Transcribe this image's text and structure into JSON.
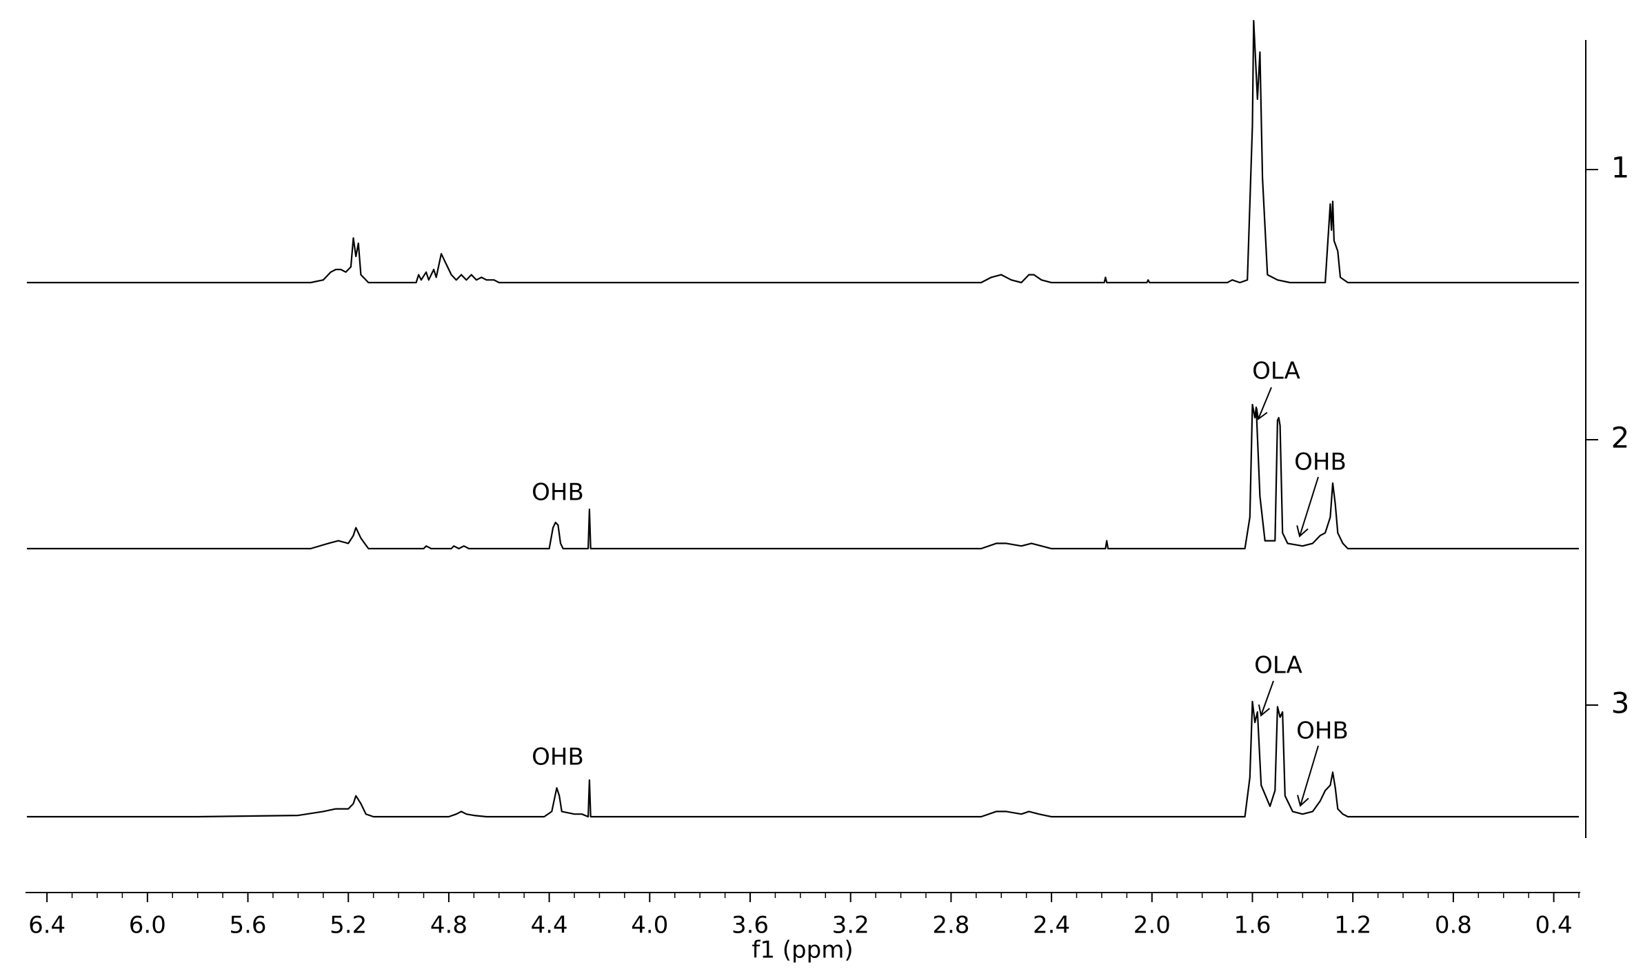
{
  "chart_data": {
    "type": "line",
    "xlabel": "f1 (ppm)",
    "xlim": [
      6.48,
      0.3
    ],
    "ylim": [
      0,
      100
    ],
    "xticks": [
      6.4,
      {
        "value": 6,
        "label": "6.0"
      },
      5.6,
      5.2,
      4.8,
      4.4,
      {
        "value": 4,
        "label": "4.0"
      },
      3.6,
      3.2,
      2.8,
      2.4,
      {
        "value": 2,
        "label": "2.0"
      },
      1.6,
      1.2,
      0.8,
      0.4
    ],
    "xminorticks": [
      6.4,
      6.3,
      6.2,
      6.1,
      6.0,
      5.9,
      5.8,
      5.7,
      5.6,
      5.5,
      5.4,
      5.3,
      5.2,
      5.1,
      5.0,
      4.9,
      4.8,
      4.7,
      4.6,
      4.5,
      4.4,
      4.3,
      4.2,
      4.1,
      4.0,
      3.9,
      3.8,
      3.7,
      3.6,
      3.5,
      3.4,
      3.3,
      3.2,
      3.1,
      3.0,
      2.9,
      2.8,
      2.7,
      2.6,
      2.5,
      2.4,
      2.3,
      2.2,
      2.1,
      2.0,
      1.9,
      1.8,
      1.7,
      1.6,
      1.5,
      1.4,
      1.3,
      1.2,
      1.1,
      1.0,
      0.9,
      0.8,
      0.7,
      0.6,
      0.5,
      0.4,
      0.3
    ],
    "series": [
      {
        "name": "1",
        "color": "#000000",
        "x": [
          6.48,
          5.35,
          5.3,
          5.27,
          5.25,
          5.23,
          5.21,
          5.19,
          5.18,
          5.17,
          5.16,
          5.15,
          5.12,
          4.93,
          4.92,
          4.91,
          4.89,
          4.88,
          4.86,
          4.85,
          4.83,
          4.81,
          4.79,
          4.77,
          4.75,
          4.73,
          4.71,
          4.69,
          4.67,
          4.65,
          4.62,
          4.6,
          2.68,
          2.64,
          2.6,
          2.56,
          2.52,
          2.49,
          2.47,
          2.44,
          2.4,
          2.19,
          2.185,
          2.18,
          2.02,
          2.015,
          2.01,
          1.7,
          1.68,
          1.65,
          1.62,
          1.6,
          1.595,
          1.58,
          1.57,
          1.56,
          1.54,
          1.5,
          1.45,
          1.31,
          1.29,
          1.285,
          1.28,
          1.275,
          1.26,
          1.25,
          1.22,
          0.3
        ],
        "values": [
          0,
          0,
          1,
          4,
          5,
          5,
          4,
          6,
          17,
          10,
          15,
          3,
          0,
          0,
          3,
          1,
          4,
          1,
          5,
          2,
          11,
          7,
          3,
          1,
          3,
          1,
          3,
          1,
          2,
          1,
          1,
          0,
          0,
          2,
          3,
          1,
          0,
          3,
          3,
          1,
          0,
          0,
          2,
          0,
          0,
          1,
          0,
          0,
          1,
          0,
          1,
          60,
          100,
          70,
          88,
          40,
          3,
          1,
          0,
          0,
          30,
          20,
          31,
          16,
          12,
          2,
          0,
          0
        ]
      },
      {
        "name": "2",
        "color": "#000000",
        "x": [
          6.48,
          5.35,
          5.28,
          5.24,
          5.2,
          5.18,
          5.17,
          5.15,
          5.12,
          4.9,
          4.89,
          4.87,
          4.79,
          4.78,
          4.76,
          4.74,
          4.72,
          4.4,
          4.385,
          4.375,
          4.365,
          4.355,
          4.345,
          4.245,
          4.24,
          4.235,
          2.68,
          2.62,
          2.58,
          2.52,
          2.48,
          2.44,
          2.4,
          2.185,
          2.18,
          2.175,
          1.63,
          1.61,
          1.6,
          1.59,
          1.585,
          1.57,
          1.55,
          1.51,
          1.5,
          1.495,
          1.49,
          1.48,
          1.46,
          1.4,
          1.36,
          1.33,
          1.31,
          1.29,
          1.28,
          1.27,
          1.26,
          1.24,
          1.22,
          0.3
        ],
        "values": [
          0,
          0,
          2,
          3,
          2,
          5,
          8,
          4,
          0,
          0,
          1,
          0,
          0,
          1,
          0,
          1,
          0,
          0,
          8,
          10,
          9,
          2,
          0,
          0,
          15,
          0,
          0,
          2,
          2,
          1,
          2,
          1,
          0,
          0,
          3,
          0,
          0,
          12,
          55,
          50,
          54,
          20,
          3,
          3,
          49,
          50,
          47,
          6,
          2,
          1,
          2,
          5,
          6,
          12,
          25,
          17,
          6,
          2,
          0,
          0
        ]
      },
      {
        "name": "3",
        "color": "#000000",
        "x": [
          6.48,
          5.8,
          5.4,
          5.3,
          5.25,
          5.2,
          5.18,
          5.17,
          5.15,
          5.13,
          5.1,
          4.8,
          4.77,
          4.75,
          4.73,
          4.7,
          4.65,
          4.42,
          4.39,
          4.37,
          4.36,
          4.35,
          4.3,
          4.27,
          4.245,
          4.24,
          4.235,
          4.2,
          2.68,
          2.62,
          2.58,
          2.52,
          2.49,
          2.45,
          2.4,
          1.63,
          1.61,
          1.6,
          1.59,
          1.58,
          1.565,
          1.53,
          1.51,
          1.5,
          1.49,
          1.48,
          1.47,
          1.44,
          1.4,
          1.36,
          1.33,
          1.31,
          1.29,
          1.28,
          1.27,
          1.26,
          1.24,
          1.22,
          0.3
        ],
        "values": [
          0,
          0,
          0.5,
          2,
          3,
          3,
          5,
          8,
          5,
          1,
          0,
          0,
          1,
          2,
          1,
          0.5,
          0,
          0,
          2,
          11,
          8,
          2,
          1,
          1,
          0,
          14,
          0,
          0,
          0,
          2,
          2,
          1,
          2,
          1,
          0,
          0,
          15,
          44,
          36,
          40,
          12,
          4,
          10,
          42,
          38,
          40,
          8,
          2,
          1,
          2,
          6,
          10,
          12,
          17,
          11,
          3,
          1,
          0,
          0
        ]
      }
    ],
    "annotations": [
      "OHB",
      "OLA",
      "OHB",
      "OHB",
      "OLA",
      "OHB"
    ]
  }
}
